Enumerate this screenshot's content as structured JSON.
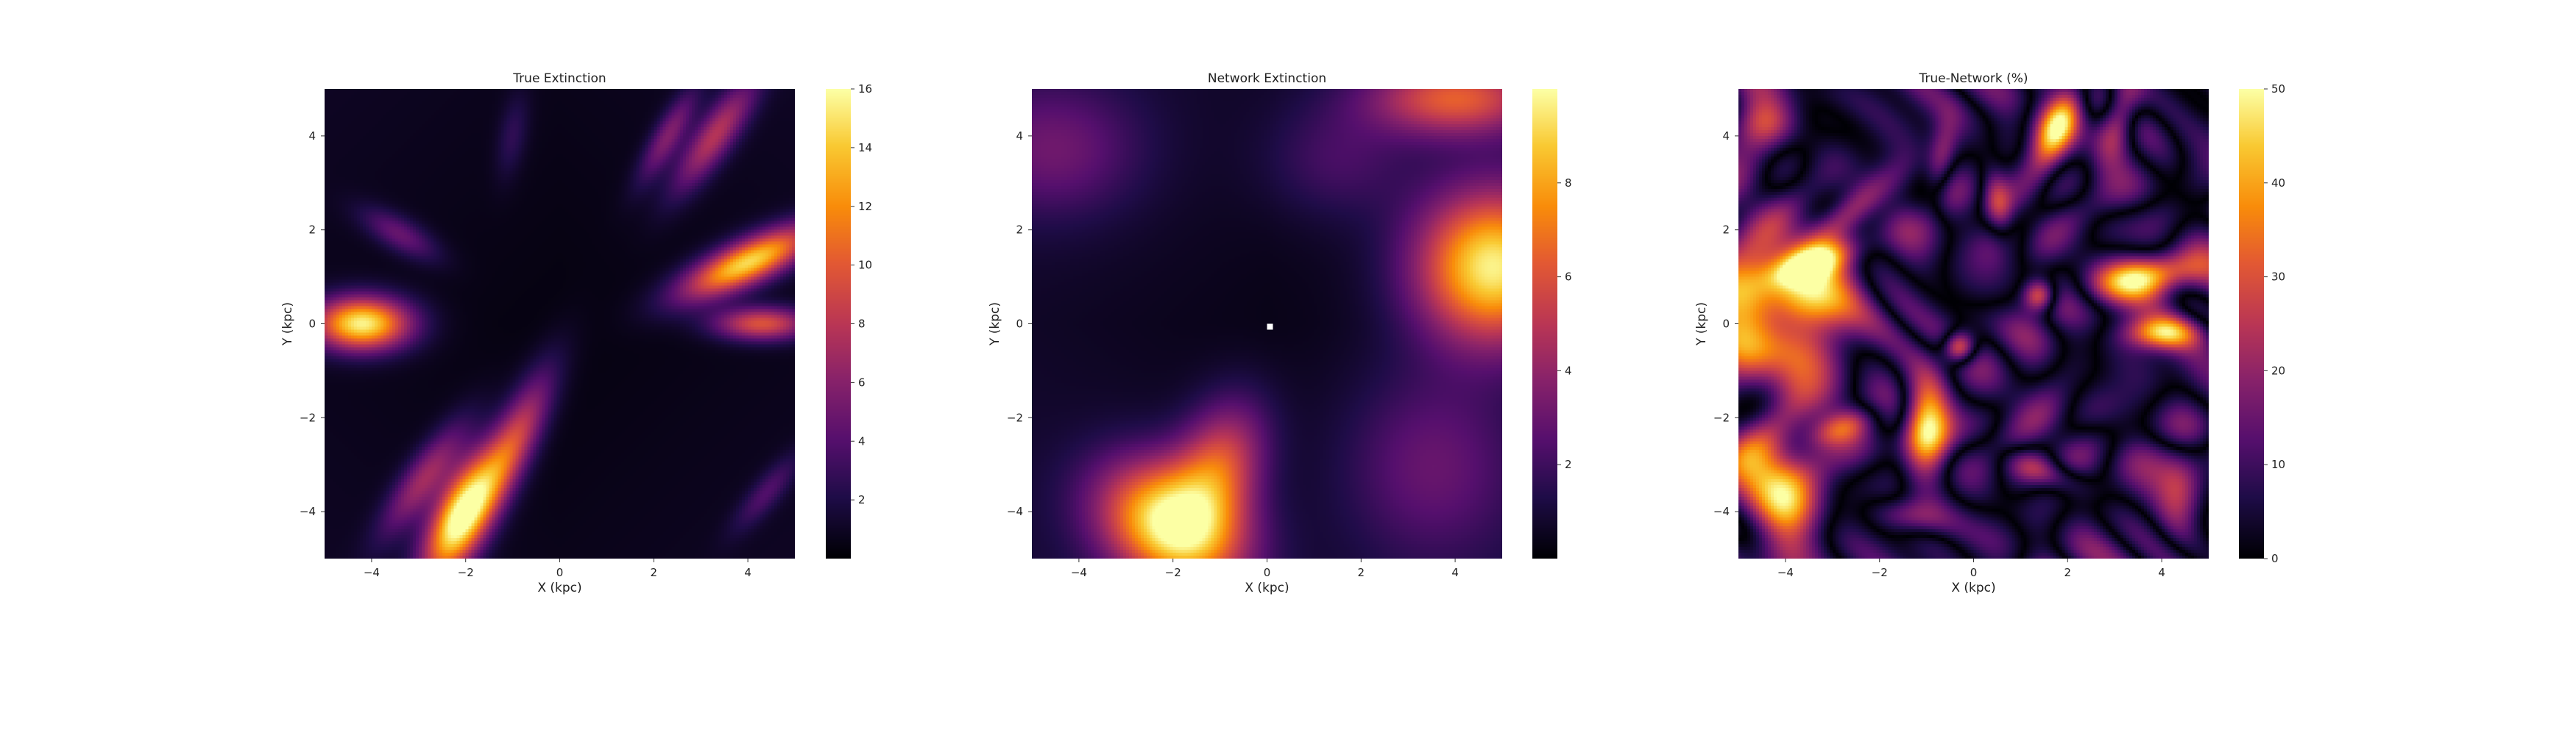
{
  "figure": {
    "colormap": "inferno",
    "x_unit_label": "X (kpc)",
    "y_unit_label": "Y (kpc)"
  },
  "chart_data": [
    {
      "type": "heatmap",
      "title": "True Extinction",
      "xlabel": "X (kpc)",
      "ylabel": "Y (kpc)",
      "xlim": [
        -5,
        5
      ],
      "ylim": [
        -5,
        5
      ],
      "x_ticks": [
        -4,
        -2,
        0,
        2,
        4
      ],
      "y_ticks": [
        -4,
        -2,
        0,
        2,
        4
      ],
      "x_tick_labels": [
        "−4",
        "−2",
        "0",
        "2",
        "4"
      ],
      "y_tick_labels": [
        "−4",
        "−2",
        "0",
        "2",
        "4"
      ],
      "colorbar": {
        "range": [
          0,
          16
        ],
        "ticks": [
          2,
          4,
          6,
          8,
          10,
          12,
          14,
          16
        ],
        "tick_labels": [
          "2",
          "4",
          "6",
          "8",
          "10",
          "12",
          "14",
          "16"
        ]
      },
      "grid": false,
      "features": [
        {
          "kind": "blob",
          "x": -4.2,
          "y": 0.0,
          "rx": 1.0,
          "ry": 0.55,
          "angle": 0,
          "value": 15
        },
        {
          "kind": "blob",
          "x": -3.4,
          "y": 1.9,
          "rx": 0.9,
          "ry": 0.35,
          "angle": -30,
          "value": 4
        },
        {
          "kind": "blob",
          "x": -2.1,
          "y": -4.1,
          "rx": 0.55,
          "ry": 1.4,
          "angle": -25,
          "value": 16
        },
        {
          "kind": "blob",
          "x": -1.0,
          "y": -2.6,
          "rx": 0.45,
          "ry": 1.7,
          "angle": -25,
          "value": 8
        },
        {
          "kind": "blob",
          "x": -2.9,
          "y": -3.3,
          "rx": 0.4,
          "ry": 1.4,
          "angle": -35,
          "value": 6
        },
        {
          "kind": "blob",
          "x": 4.0,
          "y": 1.3,
          "rx": 1.5,
          "ry": 0.45,
          "angle": 25,
          "value": 14
        },
        {
          "kind": "blob",
          "x": 4.3,
          "y": 0.0,
          "rx": 1.0,
          "ry": 0.35,
          "angle": 0,
          "value": 9
        },
        {
          "kind": "blob",
          "x": 3.3,
          "y": 4.0,
          "rx": 1.4,
          "ry": 0.4,
          "angle": 55,
          "value": 7
        },
        {
          "kind": "blob",
          "x": 2.3,
          "y": 4.0,
          "rx": 1.1,
          "ry": 0.3,
          "angle": 60,
          "value": 5
        },
        {
          "kind": "blob",
          "x": 4.4,
          "y": -3.6,
          "rx": 1.0,
          "ry": 0.3,
          "angle": 50,
          "value": 3
        },
        {
          "kind": "blob",
          "x": -1.0,
          "y": 4.0,
          "rx": 0.9,
          "ry": 0.3,
          "angle": 80,
          "value": 2
        }
      ]
    },
    {
      "type": "heatmap",
      "title": "Network Extinction",
      "xlabel": "X (kpc)",
      "ylabel": "Y (kpc)",
      "xlim": [
        -5,
        5
      ],
      "ylim": [
        -5,
        5
      ],
      "x_ticks": [
        -4,
        -2,
        0,
        2,
        4
      ],
      "y_ticks": [
        -4,
        -2,
        0,
        2,
        4
      ],
      "x_tick_labels": [
        "−4",
        "−2",
        "0",
        "2",
        "4"
      ],
      "y_tick_labels": [
        "−4",
        "−2",
        "0",
        "2",
        "4"
      ],
      "colorbar": {
        "range": [
          0,
          10
        ],
        "ticks": [
          2,
          4,
          6,
          8
        ],
        "tick_labels": [
          "2",
          "4",
          "6",
          "8"
        ]
      },
      "grid": false,
      "center_marker": {
        "x": 0,
        "y": 0,
        "value": 10
      },
      "features": [
        {
          "kind": "blob",
          "x": -2.0,
          "y": -4.3,
          "rx": 1.6,
          "ry": 1.2,
          "angle": -30,
          "value": 9.5
        },
        {
          "kind": "blob",
          "x": -1.0,
          "y": -3.0,
          "rx": 0.9,
          "ry": 1.4,
          "angle": -20,
          "value": 5
        },
        {
          "kind": "blob",
          "x": 4.8,
          "y": 1.2,
          "rx": 1.6,
          "ry": 1.6,
          "angle": 0,
          "value": 9
        },
        {
          "kind": "blob",
          "x": 4.0,
          "y": 4.8,
          "rx": 1.8,
          "ry": 0.8,
          "angle": 0,
          "value": 5.5
        },
        {
          "kind": "blob",
          "x": -4.5,
          "y": 3.7,
          "rx": 1.8,
          "ry": 1.4,
          "angle": 0,
          "value": 2.3
        },
        {
          "kind": "blob",
          "x": 3.5,
          "y": -3.0,
          "rx": 1.8,
          "ry": 2.0,
          "angle": 0,
          "value": 2.2
        },
        {
          "kind": "blob",
          "x": 1.5,
          "y": 3.5,
          "rx": 1.5,
          "ry": 1.2,
          "angle": 0,
          "value": 1.5
        }
      ]
    },
    {
      "type": "heatmap",
      "title": "True-Network (%)",
      "xlabel": "X (kpc)",
      "ylabel": "Y (kpc)",
      "xlim": [
        -5,
        5
      ],
      "ylim": [
        -5,
        5
      ],
      "x_ticks": [
        -4,
        -2,
        0,
        2,
        4
      ],
      "y_ticks": [
        -4,
        -2,
        0,
        2,
        4
      ],
      "x_tick_labels": [
        "−4",
        "−2",
        "0",
        "2",
        "4"
      ],
      "y_tick_labels": [
        "−4",
        "−2",
        "0",
        "2",
        "4"
      ],
      "colorbar": {
        "range": [
          0,
          50
        ],
        "ticks": [
          0,
          10,
          20,
          30,
          40,
          50
        ],
        "tick_labels": [
          "0",
          "10",
          "20",
          "30",
          "40",
          "50"
        ]
      },
      "grid": false,
      "features": [
        {
          "kind": "blob",
          "x": -4.2,
          "y": 0.3,
          "rx": 1.6,
          "ry": 1.4,
          "angle": 0,
          "value": 60
        },
        {
          "kind": "blob",
          "x": -4.3,
          "y": -3.6,
          "rx": 0.9,
          "ry": 1.4,
          "angle": 10,
          "value": 55
        },
        {
          "kind": "blob",
          "x": -1.0,
          "y": -2.2,
          "rx": 0.5,
          "ry": 1.1,
          "angle": 0,
          "value": 55
        },
        {
          "kind": "blob",
          "x": -0.3,
          "y": -0.5,
          "rx": 0.35,
          "ry": 0.35,
          "angle": 0,
          "value": 55
        },
        {
          "kind": "blob",
          "x": 1.8,
          "y": 4.2,
          "rx": 0.4,
          "ry": 1.0,
          "angle": -25,
          "value": 50
        },
        {
          "kind": "blob",
          "x": 3.7,
          "y": 1.0,
          "rx": 1.1,
          "ry": 0.45,
          "angle": 10,
          "value": 55
        },
        {
          "kind": "blob",
          "x": 4.0,
          "y": -0.2,
          "rx": 0.8,
          "ry": 0.35,
          "angle": 0,
          "value": 45
        },
        {
          "kind": "blob",
          "x": 3.1,
          "y": 4.4,
          "rx": 0.4,
          "ry": 0.9,
          "angle": -15,
          "value": 40
        },
        {
          "kind": "blob",
          "x": -4.4,
          "y": 4.3,
          "rx": 0.8,
          "ry": 0.6,
          "angle": 0,
          "value": 40
        },
        {
          "kind": "blob",
          "x": -2.6,
          "y": 2.4,
          "rx": 1.2,
          "ry": 0.4,
          "angle": 40,
          "value": 40
        },
        {
          "kind": "blob",
          "x": -3.4,
          "y": 1.3,
          "rx": 1.0,
          "ry": 0.35,
          "angle": 20,
          "value": 35
        },
        {
          "kind": "blob",
          "x": 1.6,
          "y": -3.2,
          "rx": 0.9,
          "ry": 0.35,
          "angle": -20,
          "value": 30
        },
        {
          "kind": "blob",
          "x": -2.8,
          "y": -2.2,
          "rx": 0.8,
          "ry": 0.35,
          "angle": 20,
          "value": 30
        },
        {
          "kind": "blob",
          "x": 0.5,
          "y": 2.6,
          "rx": 0.3,
          "ry": 0.8,
          "angle": 10,
          "value": 25
        },
        {
          "kind": "blob",
          "x": -0.7,
          "y": 3.4,
          "rx": 0.3,
          "ry": 0.9,
          "angle": -10,
          "value": 25
        },
        {
          "kind": "blob",
          "x": 4.4,
          "y": -3.6,
          "rx": 0.5,
          "ry": 0.9,
          "angle": 0,
          "value": 30
        },
        {
          "kind": "blob",
          "x": 1.4,
          "y": 0.6,
          "rx": 0.35,
          "ry": 0.35,
          "angle": 0,
          "value": 45
        },
        {
          "kind": "blob",
          "x": -1.4,
          "y": -4.1,
          "rx": 0.8,
          "ry": 0.4,
          "angle": -10,
          "value": 30
        }
      ],
      "contour_spacing": 1.1
    }
  ]
}
